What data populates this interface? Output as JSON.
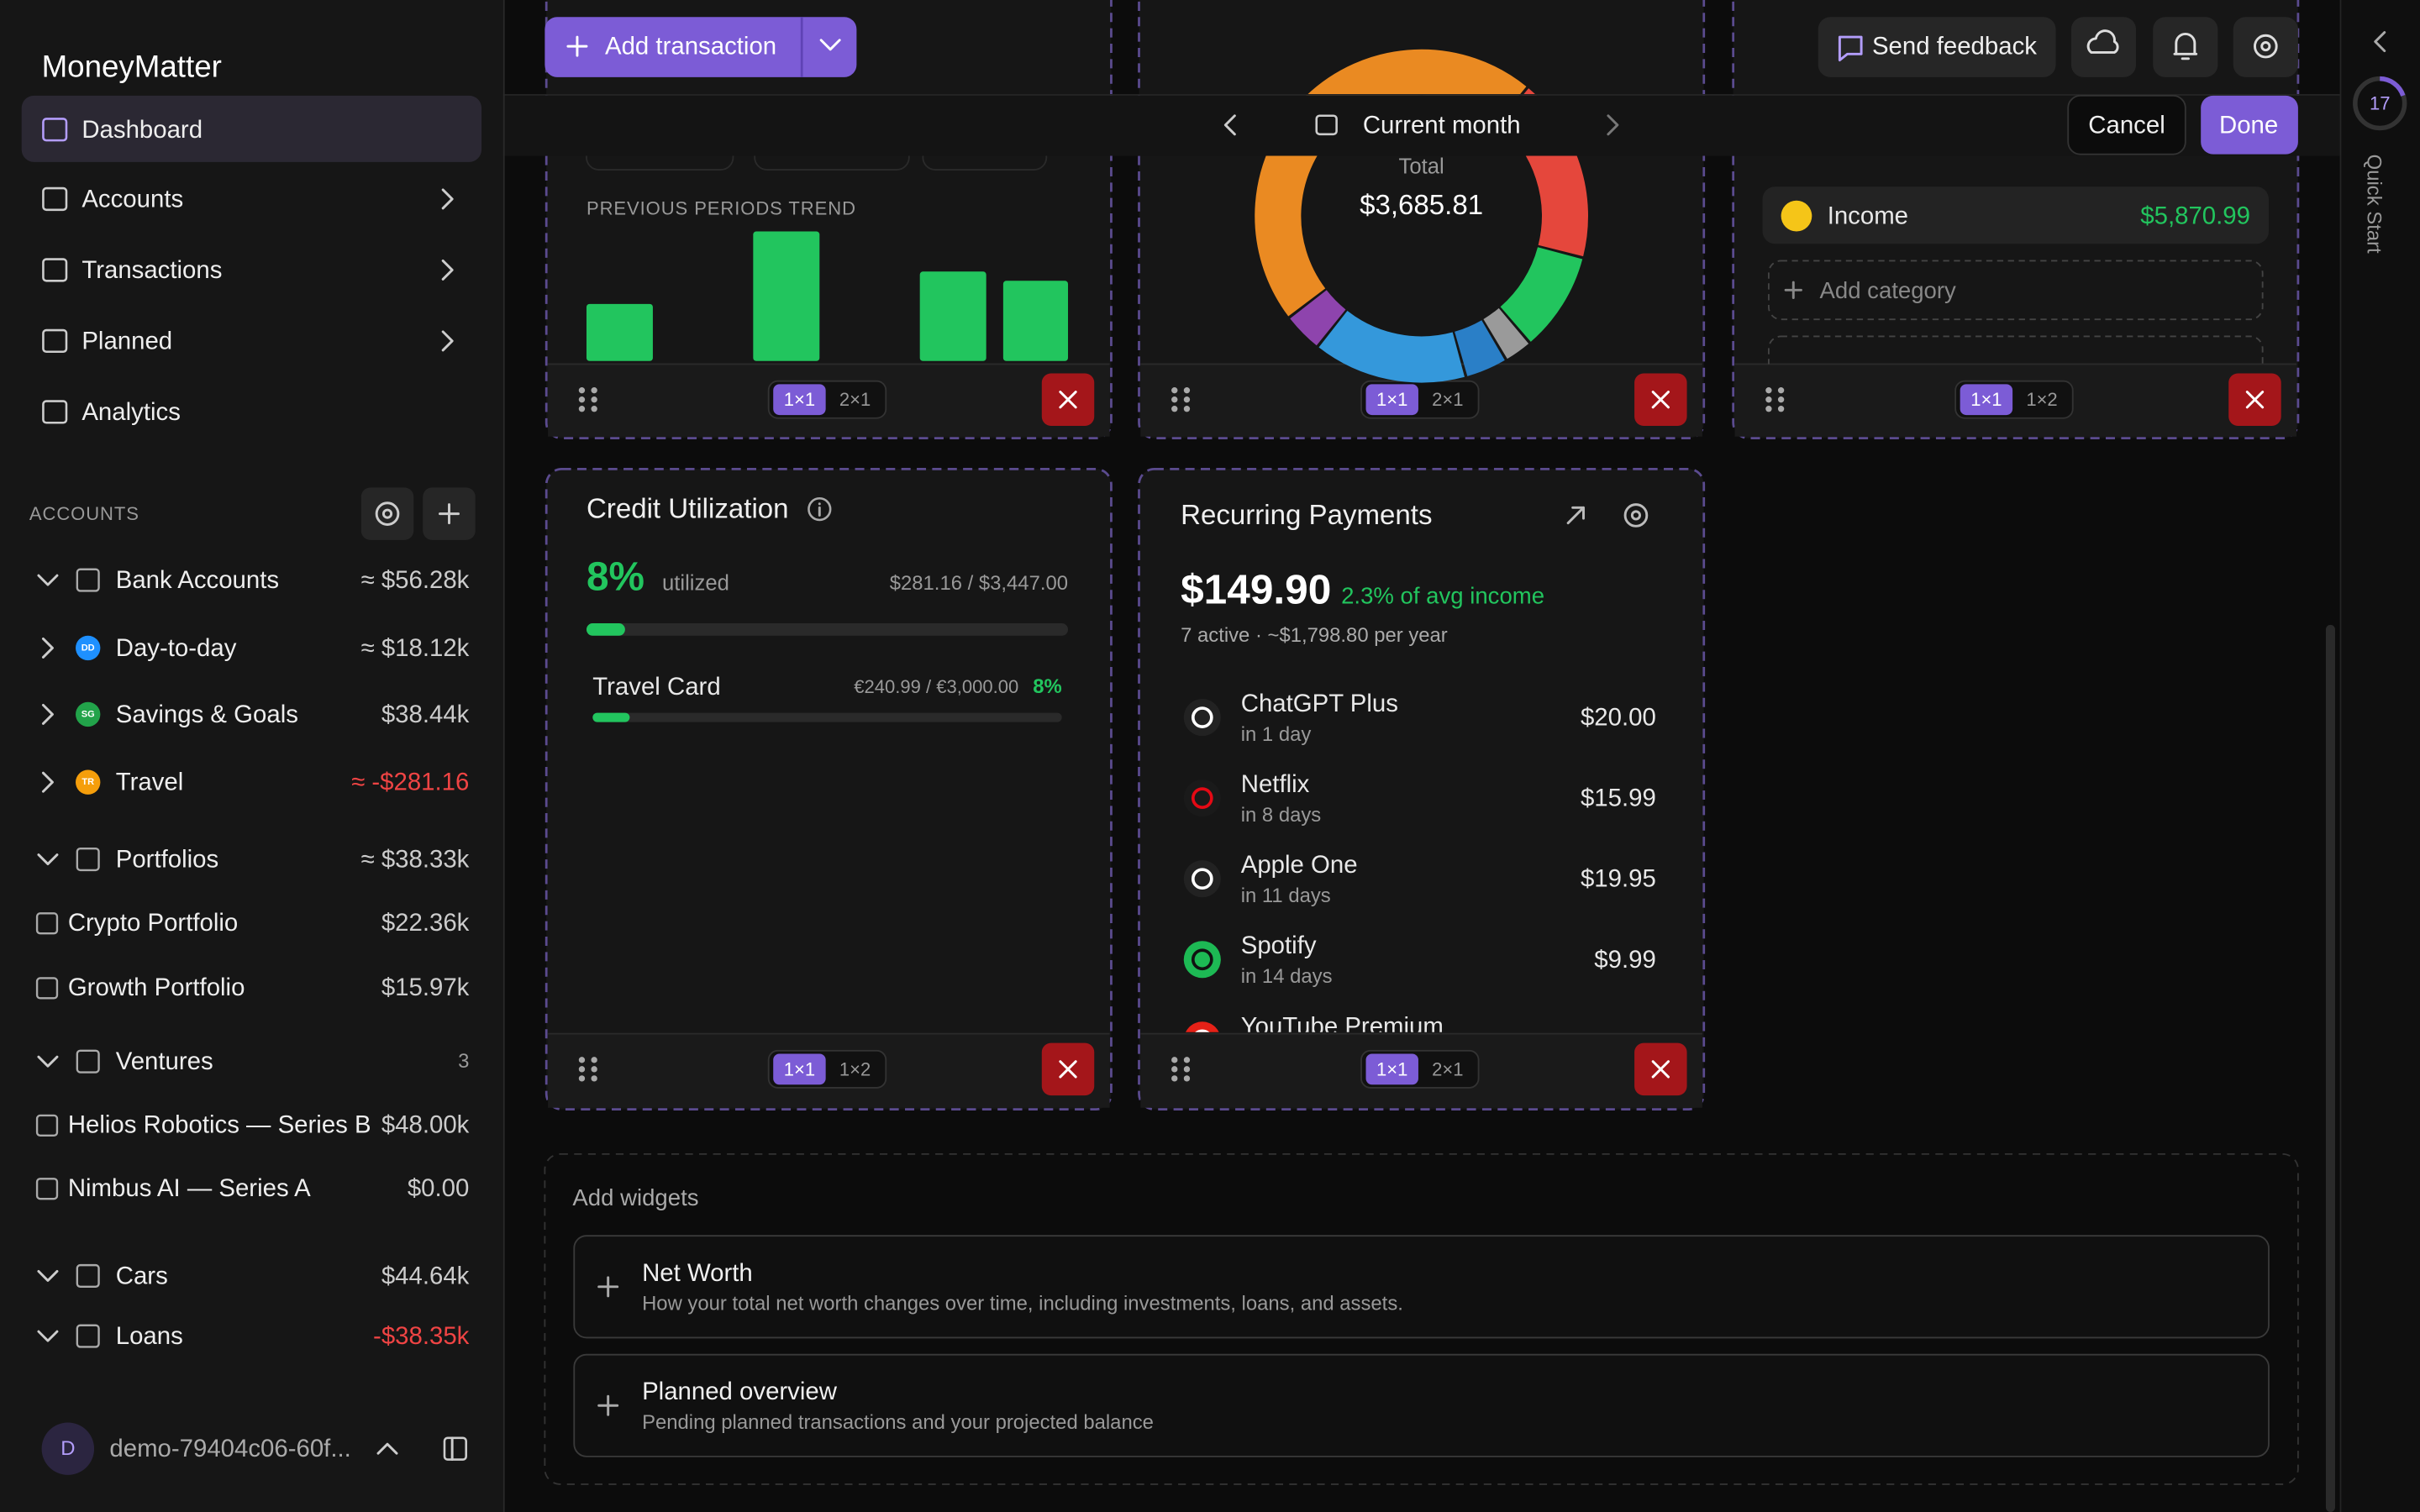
{
  "sidebar": {
    "app_name": "MoneyMatter",
    "nav": [
      "Dashboard",
      "Accounts",
      "Transactions",
      "Planned",
      "Analytics"
    ],
    "accounts_label": "ACCOUNTS",
    "accounts": [
      {
        "name": "Bank Accounts",
        "value": "≈ $56.28k"
      },
      {
        "name": "Day-to-day",
        "badge": "DD",
        "value": "≈ $18.12k"
      },
      {
        "name": "Savings & Goals",
        "badge": "SG",
        "value": "$38.44k"
      },
      {
        "name": "Travel",
        "badge": "TR",
        "value": "≈ -$281.16"
      },
      {
        "name": "Portfolios",
        "value": "≈ $38.33k"
      },
      {
        "name": "Crypto Portfolio",
        "value": "$22.36k"
      },
      {
        "name": "Growth Portfolio",
        "value": "$15.97k"
      },
      {
        "name": "Ventures",
        "value": "3"
      },
      {
        "name": "Helios Robotics — Series B",
        "value": "$48.00k"
      },
      {
        "name": "Nimbus AI — Series A",
        "value": "$0.00"
      },
      {
        "name": "Cars",
        "value": "$44.64k"
      },
      {
        "name": "Loans",
        "value": "-$38.35k"
      }
    ],
    "avatar": "D",
    "user_name": "demo-79404c06-60f..."
  },
  "toolbar": {
    "add_transaction": "Add transaction",
    "send_feedback": "Send feedback",
    "period": "Current month",
    "cancel": "Cancel",
    "done": "Done"
  },
  "quick_start": {
    "count": "17",
    "label": "Quick Start"
  },
  "widgets": {
    "trend": {
      "label": "PREVIOUS PERIODS TREND",
      "sizes": [
        "1×1",
        "2×1"
      ]
    },
    "spending": {
      "total_label": "Total",
      "total": "$3,685.81",
      "sizes": [
        "1×1",
        "2×1"
      ]
    },
    "categories": {
      "items": [
        {
          "name": "Income",
          "value": "$5,870.99"
        }
      ],
      "add": "Add category",
      "sizes": [
        "1×1",
        "1×2"
      ]
    },
    "credit": {
      "title": "Credit Utilization",
      "percent": "8%",
      "utilized": "utilized",
      "amount": "$281.16 / $3,447.00",
      "cards": [
        {
          "name": "Travel Card",
          "amount": "€240.99 / €3,000.00",
          "percent": "8%"
        }
      ],
      "sizes": [
        "1×1",
        "1×2"
      ]
    },
    "recurring": {
      "title": "Recurring Payments",
      "total": "$149.90",
      "share": "2.3% of avg income",
      "summary": "7 active · ~$1,798.80 per year",
      "items": [
        {
          "name": "ChatGPT Plus",
          "due": "in 1 day",
          "value": "$20.00"
        },
        {
          "name": "Netflix",
          "due": "in 8 days",
          "value": "$15.99"
        },
        {
          "name": "Apple One",
          "due": "in 11 days",
          "value": "$19.95"
        },
        {
          "name": "Spotify",
          "due": "in 14 days",
          "value": "$9.99"
        },
        {
          "name": "YouTube Premium"
        }
      ],
      "sizes": [
        "1×1",
        "2×1"
      ]
    }
  },
  "add_widgets": {
    "title": "Add widgets",
    "items": [
      {
        "name": "Net Worth",
        "description": "How your total net worth changes over time, including investments, loans, and assets."
      },
      {
        "name": "Planned overview",
        "description": "Pending planned transactions and your projected balance"
      }
    ]
  }
}
